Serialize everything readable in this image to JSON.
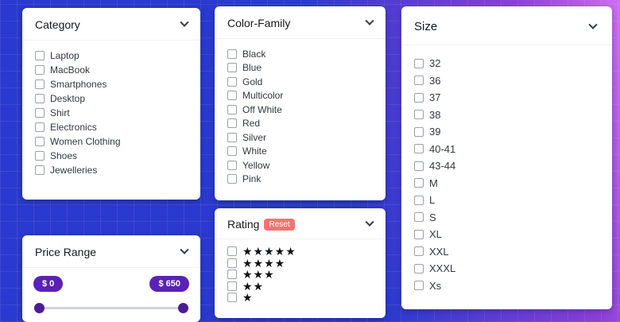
{
  "filters": {
    "category": {
      "title": "Category",
      "items": [
        "Laptop",
        "MacBook",
        "Smartphones",
        "Desktop",
        "Shirt",
        "Electronics",
        "Women Clothing",
        "Shoes",
        "Jewelleries"
      ]
    },
    "color_family": {
      "title": "Color-Family",
      "items": [
        "Black",
        "Blue",
        "Gold",
        "Multicolor",
        "Off White",
        "Red",
        "Silver",
        "White",
        "Yellow",
        "Pink"
      ]
    },
    "size": {
      "title": "Size",
      "items": [
        "32",
        "36",
        "37",
        "38",
        "39",
        "40-41",
        "43-44",
        "M",
        "L",
        "S",
        "XL",
        "XXL",
        "XXXL",
        "Xs"
      ]
    },
    "price_range": {
      "title": "Price Range",
      "min_value_label": "$ 0",
      "max_value_label": "$ 650"
    },
    "rating": {
      "title": "Rating",
      "reset_label": "Reset",
      "rows": [
        "★★★★★",
        "★★★★",
        "★★★",
        "★★",
        "★"
      ]
    }
  },
  "colors": {
    "accent_purple": "#5b21b6",
    "reset_red": "#f87171",
    "background_blue": "#2a3ace",
    "background_magenta": "#cf6ef0"
  }
}
